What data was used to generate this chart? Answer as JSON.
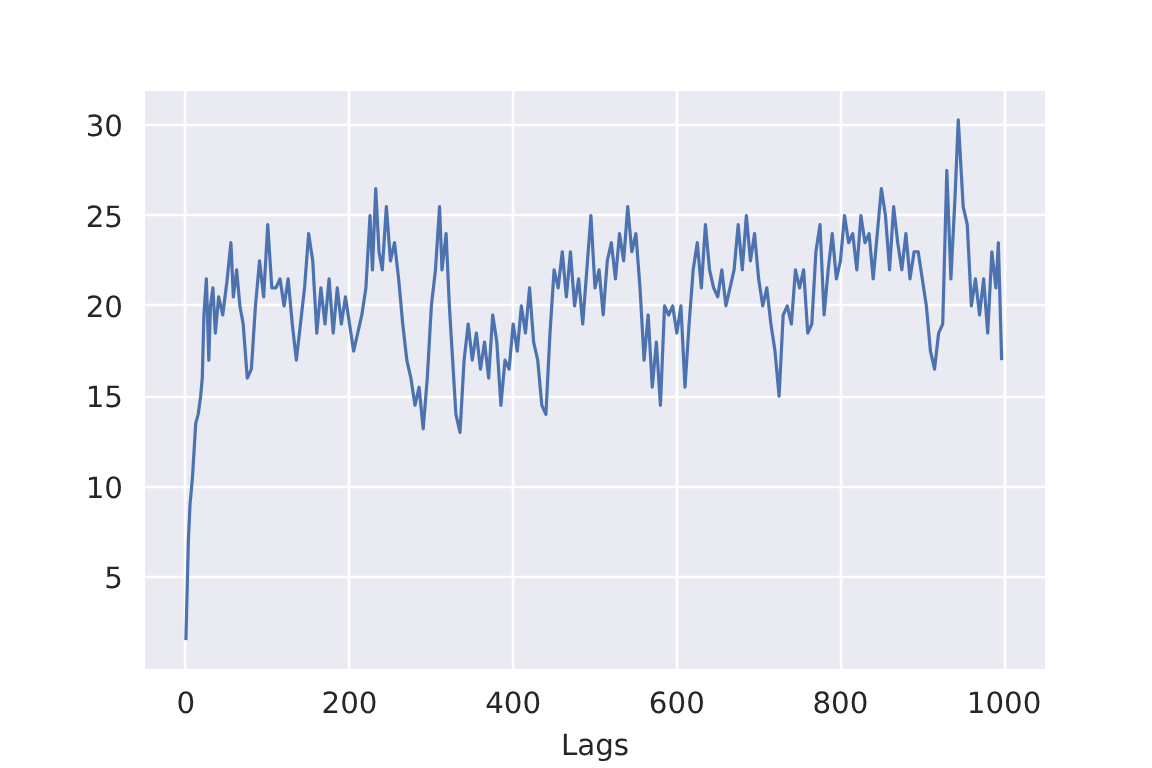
{
  "chart_data": {
    "type": "line",
    "xlabel": "Lags",
    "xlim": [
      -50,
      1050
    ],
    "ylim": [
      -0.1,
      31.9
    ],
    "xticks": [
      0,
      200,
      400,
      600,
      800,
      1000
    ],
    "yticks": [
      5,
      10,
      15,
      20,
      25,
      30
    ],
    "grid": true,
    "series": [
      {
        "color": "#4c72b0",
        "x": [
          0,
          3,
          5,
          8,
          10,
          12,
          15,
          18,
          20,
          22,
          25,
          28,
          30,
          33,
          36,
          40,
          45,
          50,
          55,
          58,
          62,
          66,
          70,
          75,
          80,
          85,
          90,
          95,
          100,
          105,
          110,
          115,
          120,
          125,
          130,
          135,
          140,
          145,
          150,
          155,
          160,
          165,
          170,
          175,
          180,
          185,
          190,
          195,
          200,
          205,
          210,
          215,
          220,
          225,
          228,
          232,
          236,
          240,
          245,
          250,
          255,
          260,
          265,
          270,
          275,
          280,
          285,
          290,
          295,
          300,
          305,
          310,
          313,
          318,
          322,
          326,
          330,
          335,
          340,
          345,
          350,
          355,
          360,
          365,
          370,
          375,
          380,
          385,
          390,
          395,
          400,
          405,
          410,
          415,
          420,
          425,
          430,
          435,
          440,
          445,
          450,
          455,
          460,
          465,
          470,
          475,
          480,
          485,
          490,
          495,
          500,
          505,
          510,
          515,
          520,
          525,
          530,
          535,
          540,
          545,
          550,
          555,
          560,
          565,
          570,
          575,
          580,
          585,
          590,
          595,
          600,
          605,
          610,
          615,
          620,
          625,
          630,
          635,
          640,
          645,
          650,
          655,
          660,
          665,
          670,
          675,
          680,
          685,
          690,
          695,
          700,
          705,
          710,
          715,
          720,
          725,
          730,
          735,
          740,
          745,
          750,
          755,
          760,
          765,
          770,
          775,
          780,
          785,
          790,
          795,
          800,
          805,
          810,
          815,
          820,
          825,
          830,
          835,
          840,
          845,
          850,
          855,
          860,
          865,
          870,
          875,
          880,
          885,
          890,
          895,
          900,
          905,
          910,
          915,
          920,
          925,
          930,
          935,
          940,
          944,
          950,
          955,
          960,
          965,
          970,
          975,
          980,
          985,
          990,
          993,
          997
        ],
        "values": [
          1.5,
          7,
          9,
          10.5,
          12,
          13.5,
          14,
          15,
          16,
          19.5,
          21.5,
          17,
          20,
          21,
          18.5,
          20.5,
          19.5,
          21.3,
          23.5,
          20.5,
          22,
          20,
          19,
          16,
          16.5,
          20,
          22.5,
          20.5,
          24.5,
          21,
          21,
          21.5,
          20,
          21.5,
          19,
          17,
          19,
          21,
          24,
          22.5,
          18.5,
          21,
          19,
          21.5,
          18.5,
          21,
          19,
          20.5,
          19,
          17.5,
          18.5,
          19.5,
          21,
          25,
          22,
          26.5,
          23,
          22,
          25.5,
          22.5,
          23.5,
          21.5,
          19,
          17,
          16,
          14.5,
          15.5,
          13.2,
          16,
          20,
          22,
          25.5,
          22,
          24,
          20,
          17,
          14,
          13,
          17,
          19,
          17,
          18.5,
          16.5,
          18,
          16,
          19.5,
          18,
          14.5,
          17,
          16.5,
          19,
          17.5,
          20,
          18.5,
          21,
          18,
          17,
          14.5,
          14,
          18.5,
          22,
          21,
          23,
          20.5,
          23,
          20,
          21.5,
          19,
          22,
          25,
          21,
          22,
          19.5,
          22.5,
          23.5,
          21.5,
          24,
          22.5,
          25.5,
          23,
          24,
          21,
          17,
          19.5,
          15.5,
          18,
          14.5,
          20,
          19.5,
          20,
          18.5,
          20,
          15.5,
          19,
          22,
          23.5,
          21,
          24.5,
          22,
          21,
          20.5,
          22,
          20,
          21,
          22,
          24.5,
          22,
          25,
          22.5,
          24,
          21.5,
          20,
          21,
          19,
          17.5,
          15,
          19.5,
          20,
          19,
          22,
          21,
          22,
          18.5,
          19,
          23,
          24.5,
          19.5,
          22,
          24,
          21.5,
          22.5,
          25,
          23.5,
          24,
          22,
          25,
          23.5,
          24,
          21.5,
          24,
          26.5,
          25,
          22,
          25.5,
          23.5,
          22,
          24,
          21.5,
          23,
          23,
          21.5,
          20,
          17.5,
          16.5,
          18.5,
          19,
          27.5,
          21.5,
          26,
          30.3,
          25.5,
          24.5,
          20,
          21.5,
          19.5,
          21.5,
          18.5,
          23,
          21,
          23.5,
          17
        ]
      }
    ]
  }
}
